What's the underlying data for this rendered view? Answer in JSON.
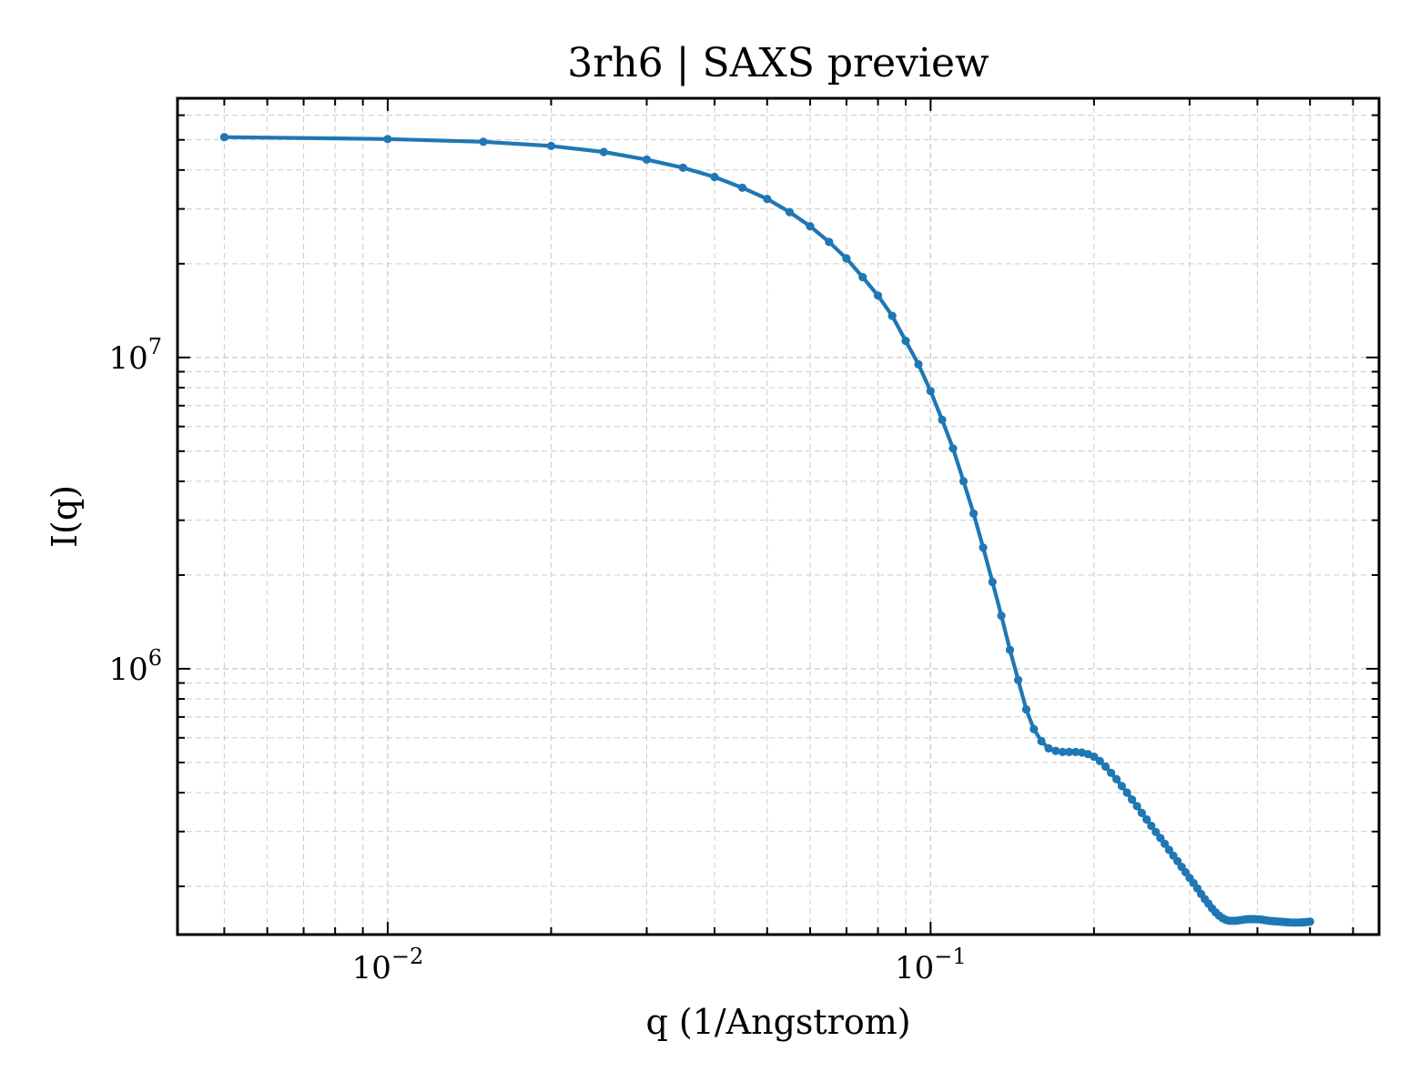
{
  "chart_data": {
    "type": "line",
    "title": "3rh6 | SAXS preview",
    "xlabel": "q (1/Angstrom)",
    "ylabel": "I(q)",
    "xscale": "log",
    "yscale": "log",
    "xlim": [
      0.0041,
      0.67
    ],
    "ylim": [
      140000,
      68000000
    ],
    "grid": true,
    "legend": "none",
    "series_color": "#1f77b4",
    "x_ticks": [
      {
        "value": 0.01,
        "base": "10",
        "exp": "−2"
      },
      {
        "value": 0.1,
        "base": "10",
        "exp": "−1"
      }
    ],
    "y_ticks": [
      {
        "value": 1000000,
        "base": "10",
        "exp": "6"
      },
      {
        "value": 10000000,
        "base": "10",
        "exp": "7"
      }
    ],
    "series": [
      {
        "x": [
          0.005,
          0.01,
          0.015,
          0.02,
          0.025,
          0.03,
          0.035,
          0.04,
          0.045,
          0.05,
          0.055,
          0.06,
          0.065,
          0.07,
          0.075,
          0.08,
          0.085,
          0.09,
          0.095,
          0.1,
          0.105,
          0.11,
          0.115,
          0.12,
          0.125,
          0.13,
          0.135,
          0.14,
          0.145,
          0.15,
          0.155,
          0.16,
          0.165,
          0.17,
          0.175,
          0.18,
          0.185,
          0.19,
          0.195,
          0.2,
          0.205,
          0.21,
          0.215,
          0.22,
          0.225,
          0.23,
          0.235,
          0.24,
          0.245,
          0.25,
          0.255,
          0.26,
          0.265,
          0.27,
          0.275,
          0.28,
          0.285,
          0.29,
          0.295,
          0.3,
          0.305,
          0.31,
          0.315,
          0.32,
          0.325,
          0.33,
          0.335,
          0.34,
          0.345,
          0.35,
          0.355,
          0.36,
          0.365,
          0.37,
          0.375,
          0.38,
          0.385,
          0.39,
          0.395,
          0.4,
          0.405,
          0.41,
          0.415,
          0.42,
          0.425,
          0.43,
          0.435,
          0.44,
          0.445,
          0.45,
          0.455,
          0.46,
          0.465,
          0.47,
          0.475,
          0.48,
          0.485,
          0.49,
          0.495,
          0.5
        ],
        "y": [
          51000000,
          50300000,
          49300000,
          47800000,
          45700000,
          43200000,
          40700000,
          38000000,
          35100000,
          32300000,
          29300000,
          26400000,
          23500000,
          20800000,
          18100000,
          15800000,
          13600000,
          11300000,
          9500000,
          7800000,
          6300000,
          5100000,
          4000000,
          3150000,
          2450000,
          1900000,
          1480000,
          1150000,
          920000,
          740000,
          640000,
          585000,
          555000,
          545000,
          540000,
          540000,
          540000,
          538000,
          532000,
          522000,
          505000,
          485000,
          463000,
          442000,
          420000,
          400000,
          380000,
          362000,
          344000,
          328000,
          313000,
          299000,
          286000,
          274000,
          262000,
          251000,
          241000,
          231000,
          222000,
          213000,
          205000,
          197000,
          189000,
          182000,
          176000,
          170000,
          165000,
          161000,
          158000,
          156000,
          155000,
          155000,
          155000,
          155500,
          156000,
          156500,
          157000,
          157000,
          157000,
          156800,
          156500,
          156000,
          155500,
          155000,
          154800,
          154500,
          154200,
          154000,
          153800,
          153500,
          153300,
          153100,
          153000,
          153000,
          153000,
          153100,
          153200,
          153400,
          153700,
          154000
        ]
      }
    ]
  }
}
